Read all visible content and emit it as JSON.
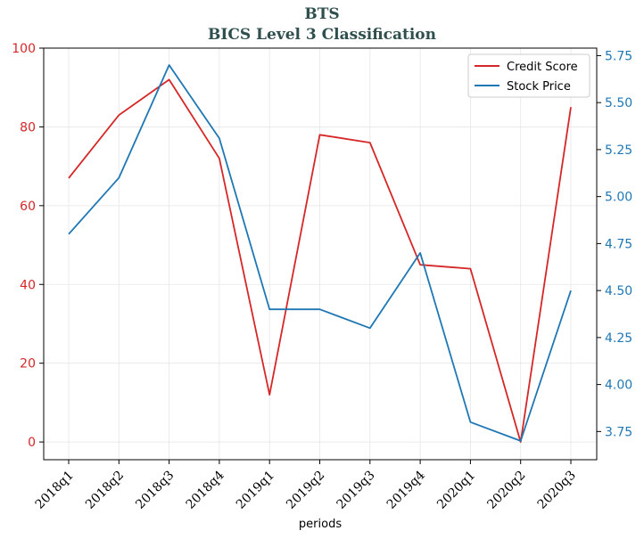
{
  "chart_data": {
    "type": "line",
    "title": "BTS",
    "subtitle": "BICS Level 3 Classification",
    "xlabel": "periods",
    "categories": [
      "2018q1",
      "2018q2",
      "2018q3",
      "2018q4",
      "2019q1",
      "2019q2",
      "2019q3",
      "2019q4",
      "2020q1",
      "2020q2",
      "2020q3"
    ],
    "series": [
      {
        "name": "Credit Score",
        "axis": "left",
        "color": "#d62728",
        "values": [
          67,
          83,
          92,
          72,
          12,
          78,
          76,
          45,
          44,
          0,
          85
        ]
      },
      {
        "name": "Stock Price",
        "axis": "right",
        "color": "#1f77b4",
        "values": [
          4.8,
          5.1,
          5.7,
          5.31,
          4.4,
          4.4,
          4.3,
          4.7,
          3.8,
          3.7,
          4.5
        ]
      }
    ],
    "y_left": {
      "ylim": [
        -4.5,
        100
      ],
      "ticks": [
        "0",
        "20",
        "40",
        "60",
        "80",
        "100"
      ],
      "tick_color": "#d62728"
    },
    "y_right": {
      "ylim": [
        3.6,
        5.79
      ],
      "ticks": [
        "3.75",
        "4.00",
        "4.25",
        "4.50",
        "4.75",
        "5.00",
        "5.25",
        "5.50",
        "5.75"
      ],
      "tick_color": "#1f77b4"
    },
    "grid": true,
    "legend": "top-right"
  }
}
